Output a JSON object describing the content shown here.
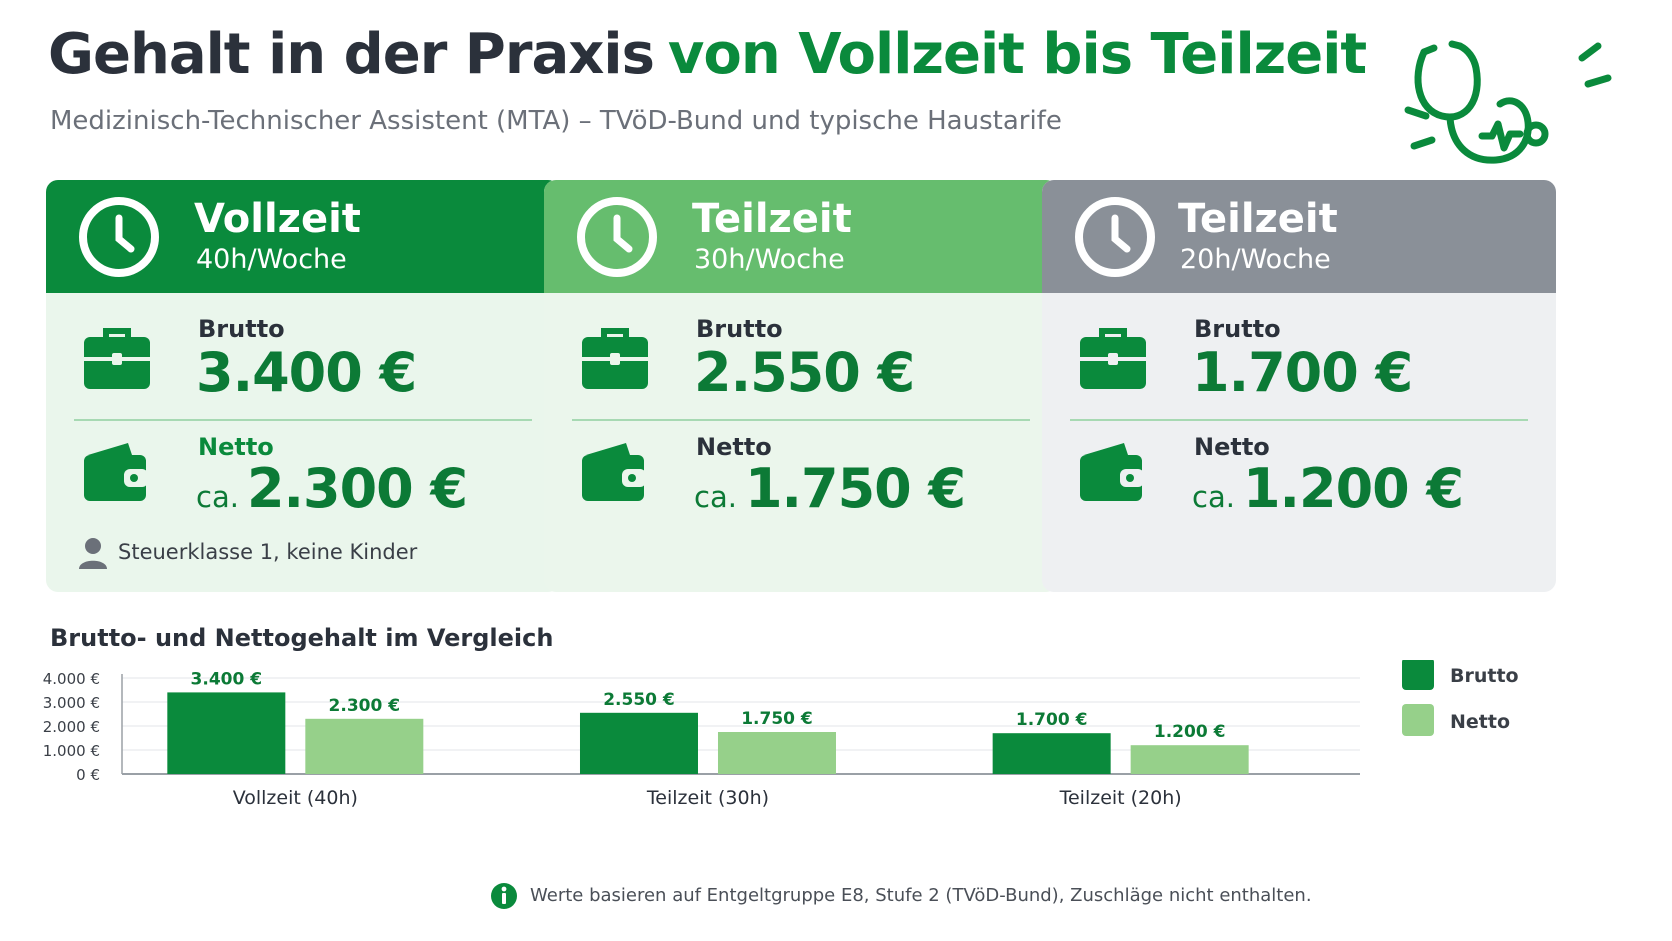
{
  "header": {
    "title_dark": "Gehalt in der Praxis",
    "title_green": "von Vollzeit bis Teilzeit",
    "subtitle": "Medizinisch-Technischer Assistent (MTA) – TVöD-Bund und typische Haustarife"
  },
  "colors": {
    "brutto": "#0a8a3c",
    "netto": "#96d08a",
    "card1_head": "#0a8a3c",
    "card2_head": "#66bd6e",
    "card3_head": "#8a9098"
  },
  "cards": [
    {
      "title": "Vollzeit",
      "hours": "40h/Woche",
      "brutto_label": "Brutto",
      "brutto": "3.400 €",
      "netto_label": "Netto",
      "ca": "ca.",
      "netto": "2.300 €",
      "note": "Steuerklasse 1, keine Kinder"
    },
    {
      "title": "Teilzeit",
      "hours": "30h/Woche",
      "brutto_label": "Brutto",
      "brutto": "2.550 €",
      "netto_label": "Netto",
      "ca": "ca.",
      "netto": "1.750 €"
    },
    {
      "title": "Teilzeit",
      "hours": "20h/Woche",
      "brutto_label": "Brutto",
      "brutto": "1.700 €",
      "netto_label": "Netto",
      "ca": "ca.",
      "netto": "1.200 €"
    }
  ],
  "chart_data": {
    "type": "bar",
    "title": "Brutto- und Nettogehalt im Vergleich",
    "categories": [
      "Vollzeit (40h)",
      "Teilzeit (30h)",
      "Teilzeit (20h)"
    ],
    "series": [
      {
        "name": "Brutto",
        "values": [
          3400,
          2550,
          1700
        ],
        "labels": [
          "3.400 €",
          "2.550 €",
          "1.700 €"
        ]
      },
      {
        "name": "Netto",
        "values": [
          2300,
          1750,
          1200
        ],
        "labels": [
          "2.300 €",
          "1.750 €",
          "1.200 €"
        ]
      }
    ],
    "yticks": [
      0,
      1000,
      2000,
      3000,
      4000
    ],
    "ytick_labels": [
      "0 €",
      "1.000 €",
      "2.000 €",
      "3.000 €",
      "4.000 €"
    ],
    "ylim": [
      0,
      4000
    ],
    "grid": true,
    "legend": "right"
  },
  "footnote": "Werte basieren auf Entgeltgruppe E8, Stufe 2 (TVöD-Bund), Zuschläge nicht enthalten."
}
